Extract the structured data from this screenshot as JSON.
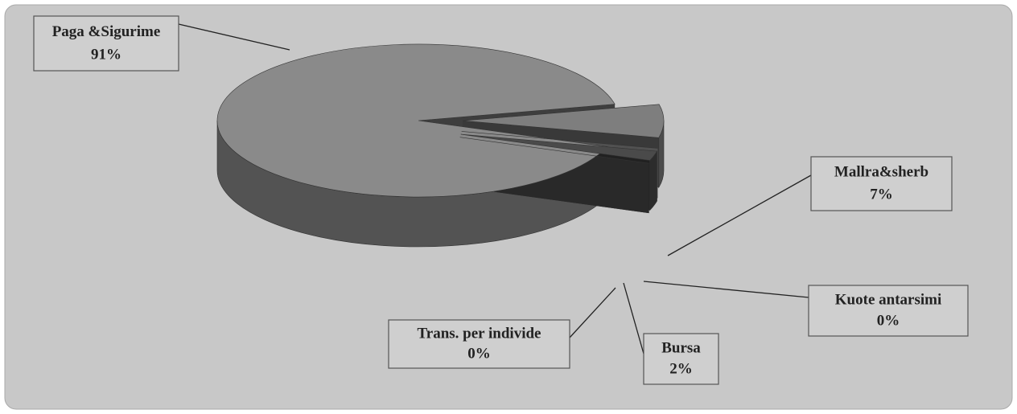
{
  "chart_data": {
    "type": "pie3d",
    "categories": [
      "Paga &Sigurime",
      "Mallra&sherb",
      "Kuote antarsimi",
      "Bursa",
      "Trans. per individe"
    ],
    "values": [
      91,
      7,
      0,
      2,
      0
    ],
    "value_labels": [
      "91%",
      "7%",
      "0%",
      "2%",
      "0%"
    ],
    "colors": [
      "#8a8a8a",
      "#7e7e7e",
      "#b4b4b4",
      "#4a4a4a",
      "#5a5a5a"
    ]
  }
}
